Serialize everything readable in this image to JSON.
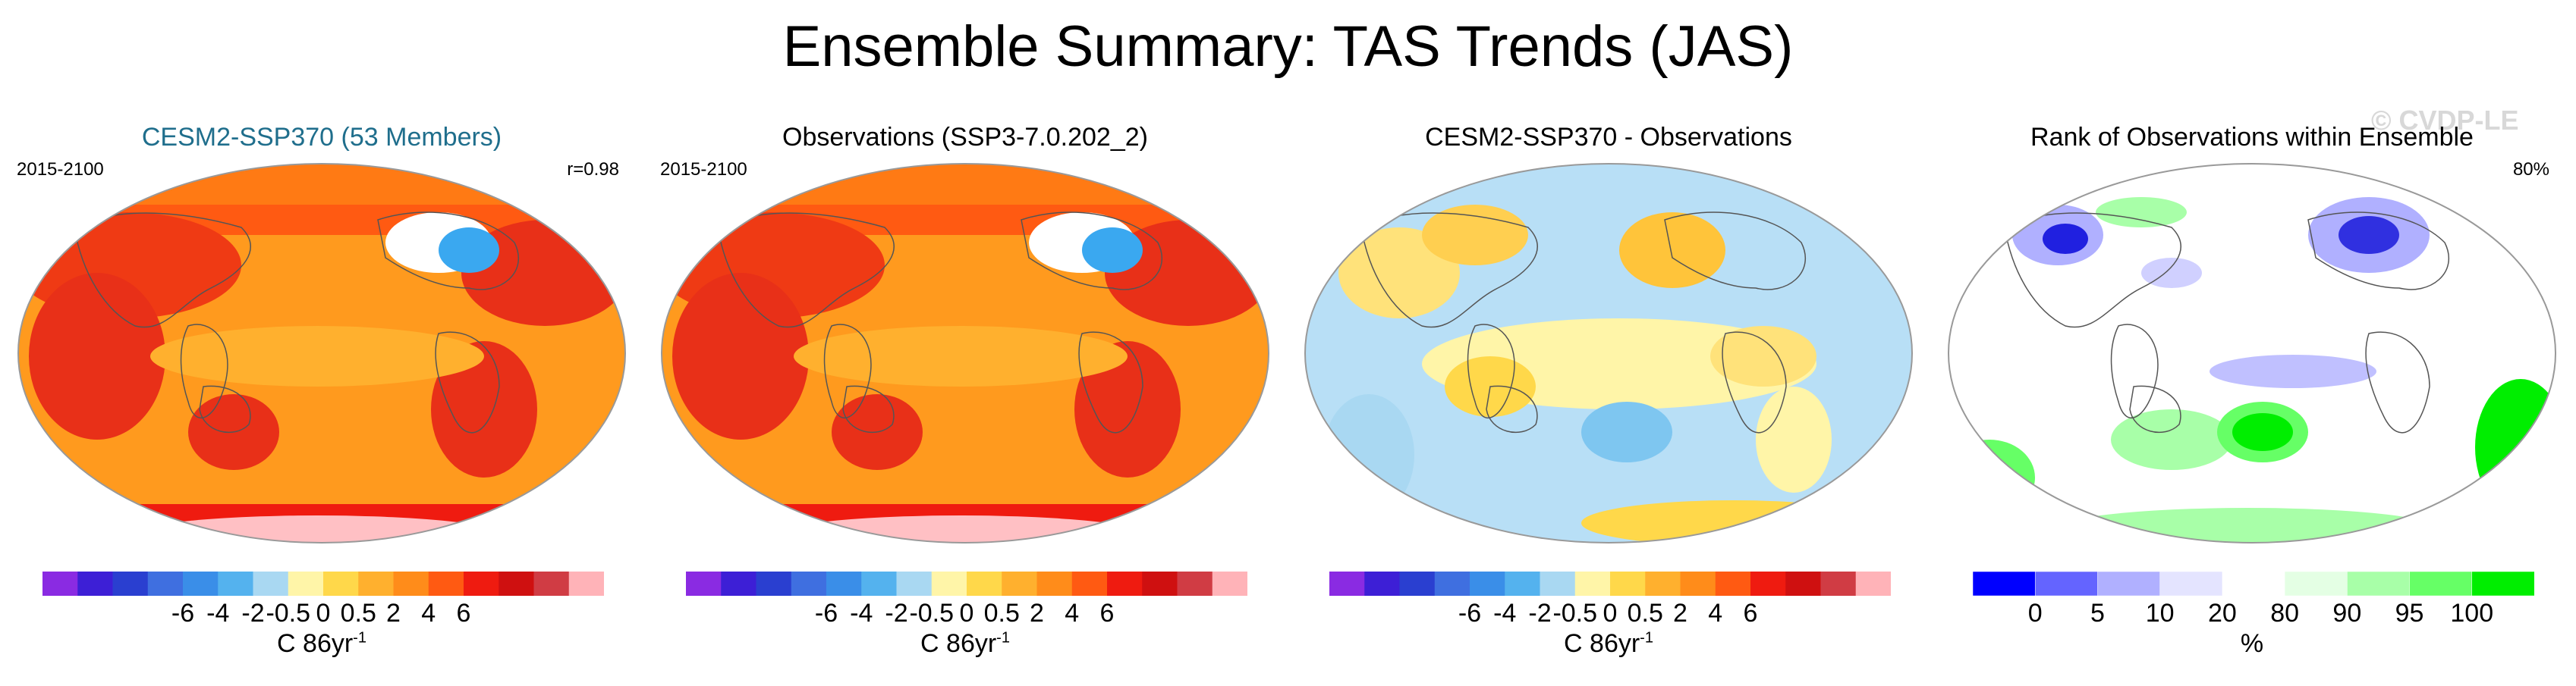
{
  "title": "Ensemble Summary: TAS Trends (JAS)",
  "watermark": "© CVDP-LE",
  "panels": [
    {
      "title": "CESM2-SSP370 (53 Members)",
      "left_label": "2015-2100",
      "right_label": "r=0.98",
      "title_color": "#1f6e8c",
      "map_style": "warm",
      "unit_base": "C 86yr",
      "unit_exp": "-1",
      "ticks": [
        "-6",
        "-4",
        "-2",
        "-0.5",
        "0",
        "0.5",
        "2",
        "4",
        "6"
      ]
    },
    {
      "title": "Observations (SSP3-7.0.202_2)",
      "left_label": "2015-2100",
      "right_label": "",
      "title_color": "#000000",
      "map_style": "warm",
      "unit_base": "C 86yr",
      "unit_exp": "-1",
      "ticks": [
        "-6",
        "-4",
        "-2",
        "-0.5",
        "0",
        "0.5",
        "2",
        "4",
        "6"
      ]
    },
    {
      "title": "CESM2-SSP370 - Observations",
      "left_label": "",
      "right_label": "",
      "title_color": "#000000",
      "map_style": "diff",
      "unit_base": "C 86yr",
      "unit_exp": "-1",
      "ticks": [
        "-6",
        "-4",
        "-2",
        "-0.5",
        "0",
        "0.5",
        "2",
        "4",
        "6"
      ]
    },
    {
      "title": "Rank of Observations within Ensemble",
      "left_label": "",
      "right_label": "80%",
      "title_color": "#000000",
      "map_style": "rank",
      "unit_base": "%",
      "unit_exp": "",
      "ticks": [
        "0",
        "5",
        "10",
        "20",
        "80",
        "90",
        "95",
        "100"
      ]
    }
  ],
  "chart_data": {
    "type": "heatmap",
    "title": "Ensemble Summary: TAS Trends (JAS)",
    "diverging_colorbar": {
      "levels": [
        -6,
        -4,
        -2,
        -0.5,
        0,
        0.5,
        2,
        4,
        6
      ],
      "colors": [
        "#8a2be2",
        "#3d1fd6",
        "#2a3fd0",
        "#3f6fe0",
        "#3a8ee8",
        "#54b2ee",
        "#a9d8f2",
        "#fff5a8",
        "#ffd84a",
        "#ffb02e",
        "#ff8c1a",
        "#ff5a12",
        "#ef1b10",
        "#cf1010",
        "#d03c44",
        "#ffb3b8"
      ]
    },
    "rank_colorbar": {
      "levels": [
        0,
        5,
        10,
        20,
        80,
        90,
        95,
        100
      ],
      "colors": [
        "#0000ff",
        "#6464ff",
        "#b0b0ff",
        "#e4e4ff",
        "#ffffff",
        "#e4ffe4",
        "#a8ffa8",
        "#66ff66",
        "#00ee00"
      ]
    }
  }
}
